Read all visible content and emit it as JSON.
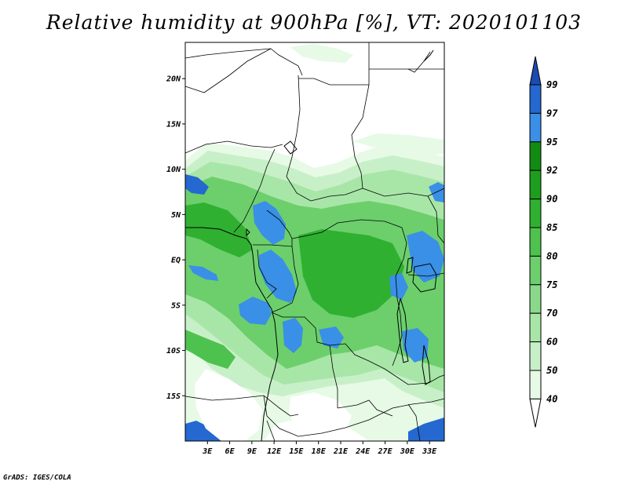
{
  "title": "Relative humidity at 900hPa [%], VT: 2020101103",
  "credit": "GrADS: IGES/COLA",
  "map": {
    "lat_range": [
      -20,
      24
    ],
    "lon_range": [
      0,
      35
    ],
    "lat_ticks": [
      {
        "value": 20,
        "label": "20N"
      },
      {
        "value": 15,
        "label": "15N"
      },
      {
        "value": 10,
        "label": "10N"
      },
      {
        "value": 5,
        "label": "5N"
      },
      {
        "value": 0,
        "label": "EQ"
      },
      {
        "value": -5,
        "label": "5S"
      },
      {
        "value": -10,
        "label": "10S"
      },
      {
        "value": -15,
        "label": "15S"
      }
    ],
    "lon_ticks": [
      {
        "value": 3,
        "label": "3E"
      },
      {
        "value": 6,
        "label": "6E"
      },
      {
        "value": 9,
        "label": "9E"
      },
      {
        "value": 12,
        "label": "12E"
      },
      {
        "value": 15,
        "label": "15E"
      },
      {
        "value": 18,
        "label": "18E"
      },
      {
        "value": 21,
        "label": "21E"
      },
      {
        "value": 24,
        "label": "24E"
      },
      {
        "value": 27,
        "label": "27E"
      },
      {
        "value": 30,
        "label": "30E"
      },
      {
        "value": 33,
        "label": "33E"
      }
    ]
  },
  "colorbar": {
    "levels": [
      "40",
      "50",
      "60",
      "70",
      "75",
      "80",
      "85",
      "90",
      "92",
      "95",
      "97",
      "99"
    ],
    "colors": [
      "#ffffff",
      "#e6fae6",
      "#c8f0c8",
      "#a8e6a8",
      "#8ad98a",
      "#6ccf6c",
      "#4ec24e",
      "#30b030",
      "#1e9e1e",
      "#128b12",
      "#3a8fe6",
      "#2468d0",
      "#1a4bb0"
    ]
  }
}
